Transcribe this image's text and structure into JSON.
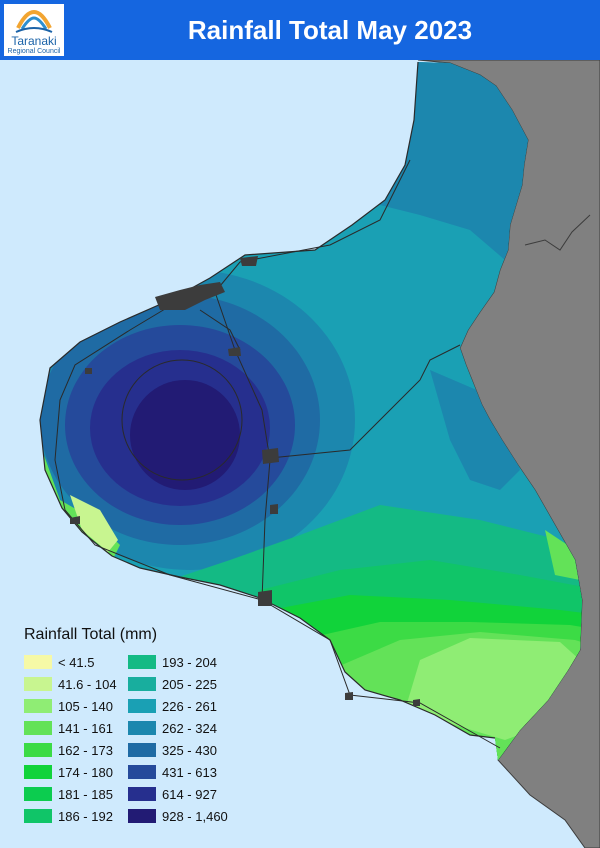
{
  "header": {
    "title": "Rainfall Total May 2023",
    "logo_line1": "Taranaki",
    "logo_line2": "Regional Council"
  },
  "colors": {
    "header_bg": "#1566e0",
    "sea": "#cfeafd",
    "neighbour_land": "#808080",
    "towns": "#3c3c3c"
  },
  "legend": {
    "title": "Rainfall Total (mm)",
    "items": [
      {
        "label": "< 41.5",
        "color": "#f6f9a6"
      },
      {
        "label": "41.6 - 104",
        "color": "#c8f590"
      },
      {
        "label": "105 - 140",
        "color": "#8fed74"
      },
      {
        "label": "141 - 161",
        "color": "#63e258"
      },
      {
        "label": "162 - 173",
        "color": "#3cdb45"
      },
      {
        "label": "174 - 180",
        "color": "#11d33a"
      },
      {
        "label": "181 - 185",
        "color": "#0ccc4f"
      },
      {
        "label": "186 - 192",
        "color": "#10c568"
      },
      {
        "label": "193 - 204",
        "color": "#14ba84"
      },
      {
        "label": "205 - 225",
        "color": "#18ae9e"
      },
      {
        "label": "226 - 261",
        "color": "#1aa0b4"
      },
      {
        "label": "262 - 324",
        "color": "#1c87ae"
      },
      {
        "label": "325 - 430",
        "color": "#1f6ba4"
      },
      {
        "label": "431 - 613",
        "color": "#254a9b"
      },
      {
        "label": "614 - 927",
        "color": "#262f8e"
      },
      {
        "label": "928 - 1,460",
        "color": "#221b74"
      }
    ]
  }
}
